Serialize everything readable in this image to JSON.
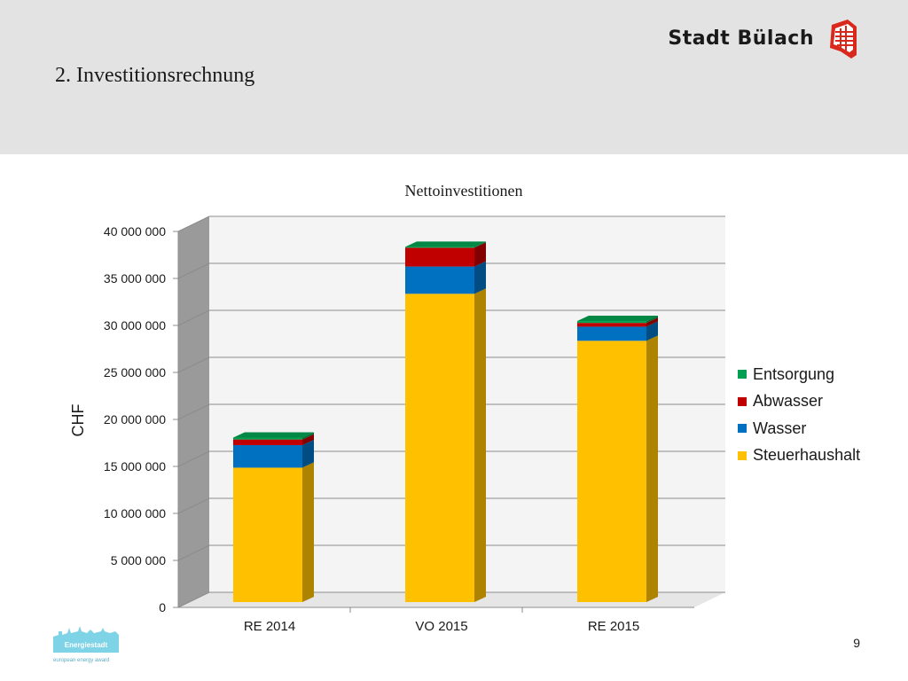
{
  "header": {
    "title": "2. Investitionsrechnung",
    "brand": "Stadt Bülach",
    "logo_icon": "city-crest-icon",
    "background": "#e3e3e3"
  },
  "chart_data": {
    "type": "bar",
    "stacked": true,
    "three_d": true,
    "title": "Nettoinvestitionen",
    "xlabel": "",
    "ylabel": "CHF",
    "ylim": [
      0,
      40000000
    ],
    "ytick_step": 5000000,
    "yticks": [
      "0",
      "5 000 000",
      "10 000 000",
      "15 000 000",
      "20 000 000",
      "25 000 000",
      "30 000 000",
      "35 000 000",
      "40 000 000"
    ],
    "categories": [
      "RE 2014",
      "VO 2015",
      "RE 2015"
    ],
    "series": [
      {
        "name": "Steuerhaushalt",
        "color": "#ffc000",
        "values": [
          14300000,
          32800000,
          27800000
        ]
      },
      {
        "name": "Wasser",
        "color": "#0070c0",
        "values": [
          2400000,
          2900000,
          1500000
        ]
      },
      {
        "name": "Abwasser",
        "color": "#c00000",
        "values": [
          600000,
          2000000,
          400000
        ]
      },
      {
        "name": "Entsorgung",
        "color": "#00a050",
        "values": [
          200000,
          100000,
          200000
        ]
      }
    ],
    "grid": true,
    "legend_position": "right"
  },
  "footer": {
    "page_number": "9",
    "logo_text": "Energiestadt",
    "logo_subtext": "european energy award"
  }
}
